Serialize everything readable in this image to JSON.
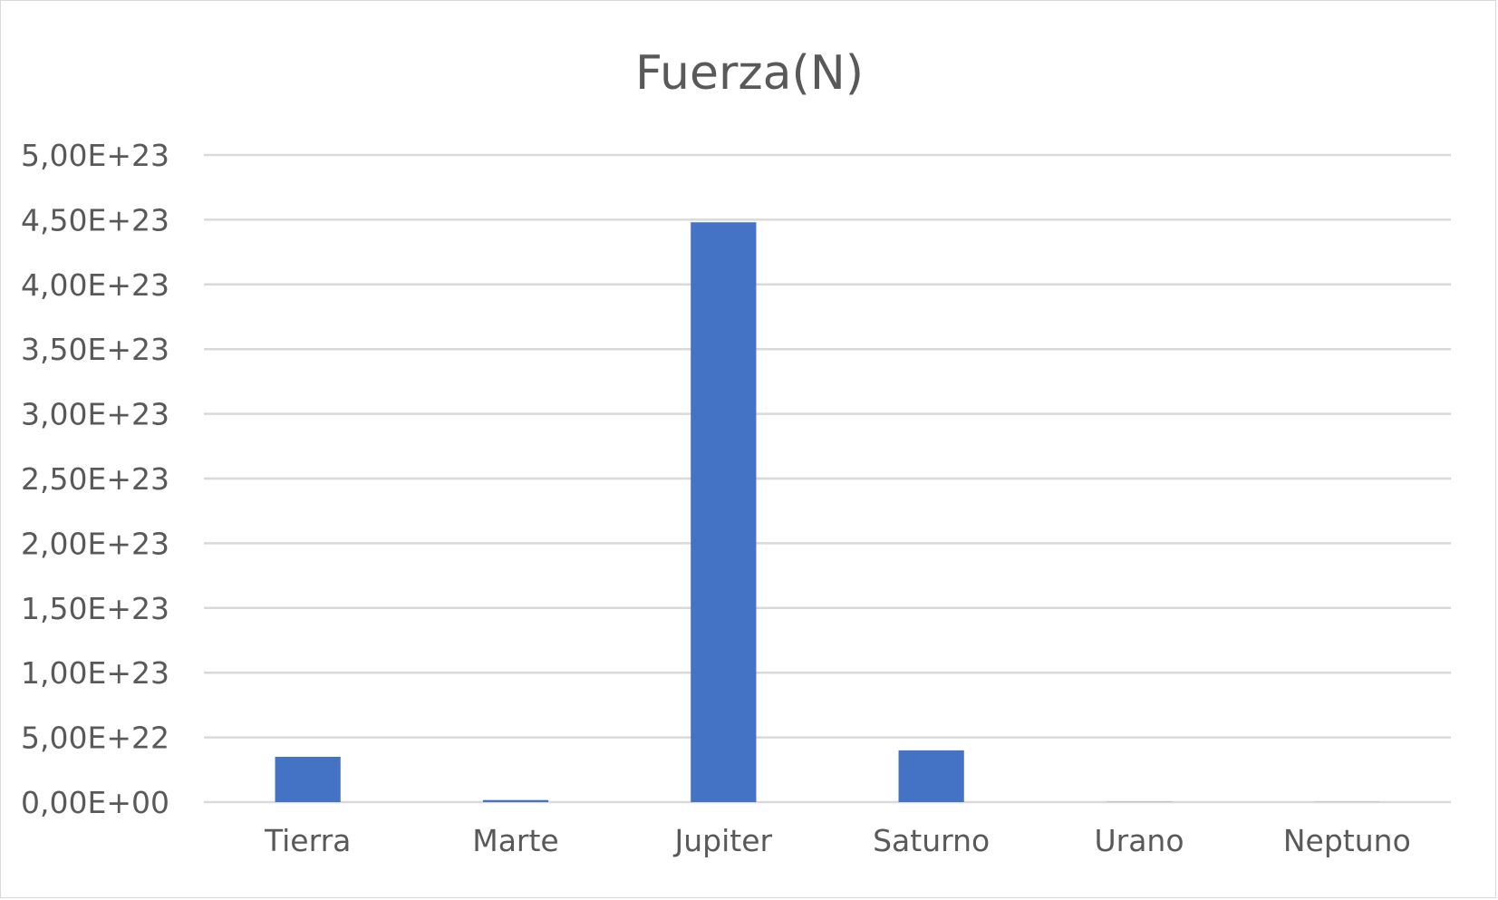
{
  "chart_data": {
    "type": "bar",
    "title": "Fuerza(N)",
    "categories": [
      "Tierra",
      "Marte",
      "Jupiter",
      "Saturno",
      "Urano",
      "Neptuno"
    ],
    "series": [
      {
        "values": [
          3.5e+22,
          1.6e+21,
          4.48e+23,
          4e+22,
          1.4e+20,
          1e+20
        ]
      }
    ],
    "yticks": [
      "0,00E+00",
      "5,00E+22",
      "1,00E+23",
      "1,50E+23",
      "2,00E+23",
      "2,50E+23",
      "3,00E+23",
      "3,50E+23",
      "4,00E+23",
      "4,50E+23",
      "5,00E+23"
    ],
    "ylim": [
      0,
      5e+23
    ],
    "grid": true,
    "legend": "none",
    "bar_color": "#4472c4",
    "xlabel": "",
    "ylabel": ""
  }
}
